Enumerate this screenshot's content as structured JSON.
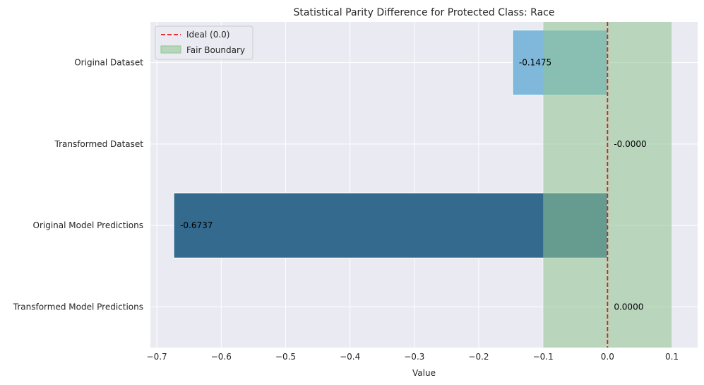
{
  "chart_data": {
    "type": "bar",
    "orientation": "horizontal",
    "title": "Statistical Parity Difference for Protected Class: Race",
    "xlabel": "Value",
    "ylabel": "",
    "xlim": [
      -0.71,
      0.14
    ],
    "xticks": [
      -0.7,
      -0.6,
      -0.5,
      -0.4,
      -0.3,
      -0.2,
      -0.1,
      0.0,
      0.1
    ],
    "xtick_labels": [
      "−0.7",
      "−0.6",
      "−0.5",
      "−0.4",
      "−0.3",
      "−0.2",
      "−0.1",
      "0.0",
      "0.1"
    ],
    "categories": [
      "Original Dataset",
      "Transformed Dataset",
      "Original Model Predictions",
      "Transformed Model Predictions"
    ],
    "values": [
      -0.1475,
      -0.0,
      -0.6737,
      0.0
    ],
    "value_labels": [
      "-0.1475",
      "-0.0000",
      "-0.6737",
      "0.0000"
    ],
    "bar_colors": [
      "#7fb8da",
      "#4a8ab4",
      "#336a8e",
      "#2b4f6e"
    ],
    "ideal_line": {
      "value": 0.0,
      "label": "Ideal (0.0)",
      "color": "#e41a1c",
      "style": "dashed"
    },
    "fair_boundary": {
      "range": [
        -0.1,
        0.1
      ],
      "label": "Fair Boundary",
      "color": "#8fc491"
    },
    "grid": true,
    "legend_position": "top-left",
    "background": "#eaeaf2"
  }
}
